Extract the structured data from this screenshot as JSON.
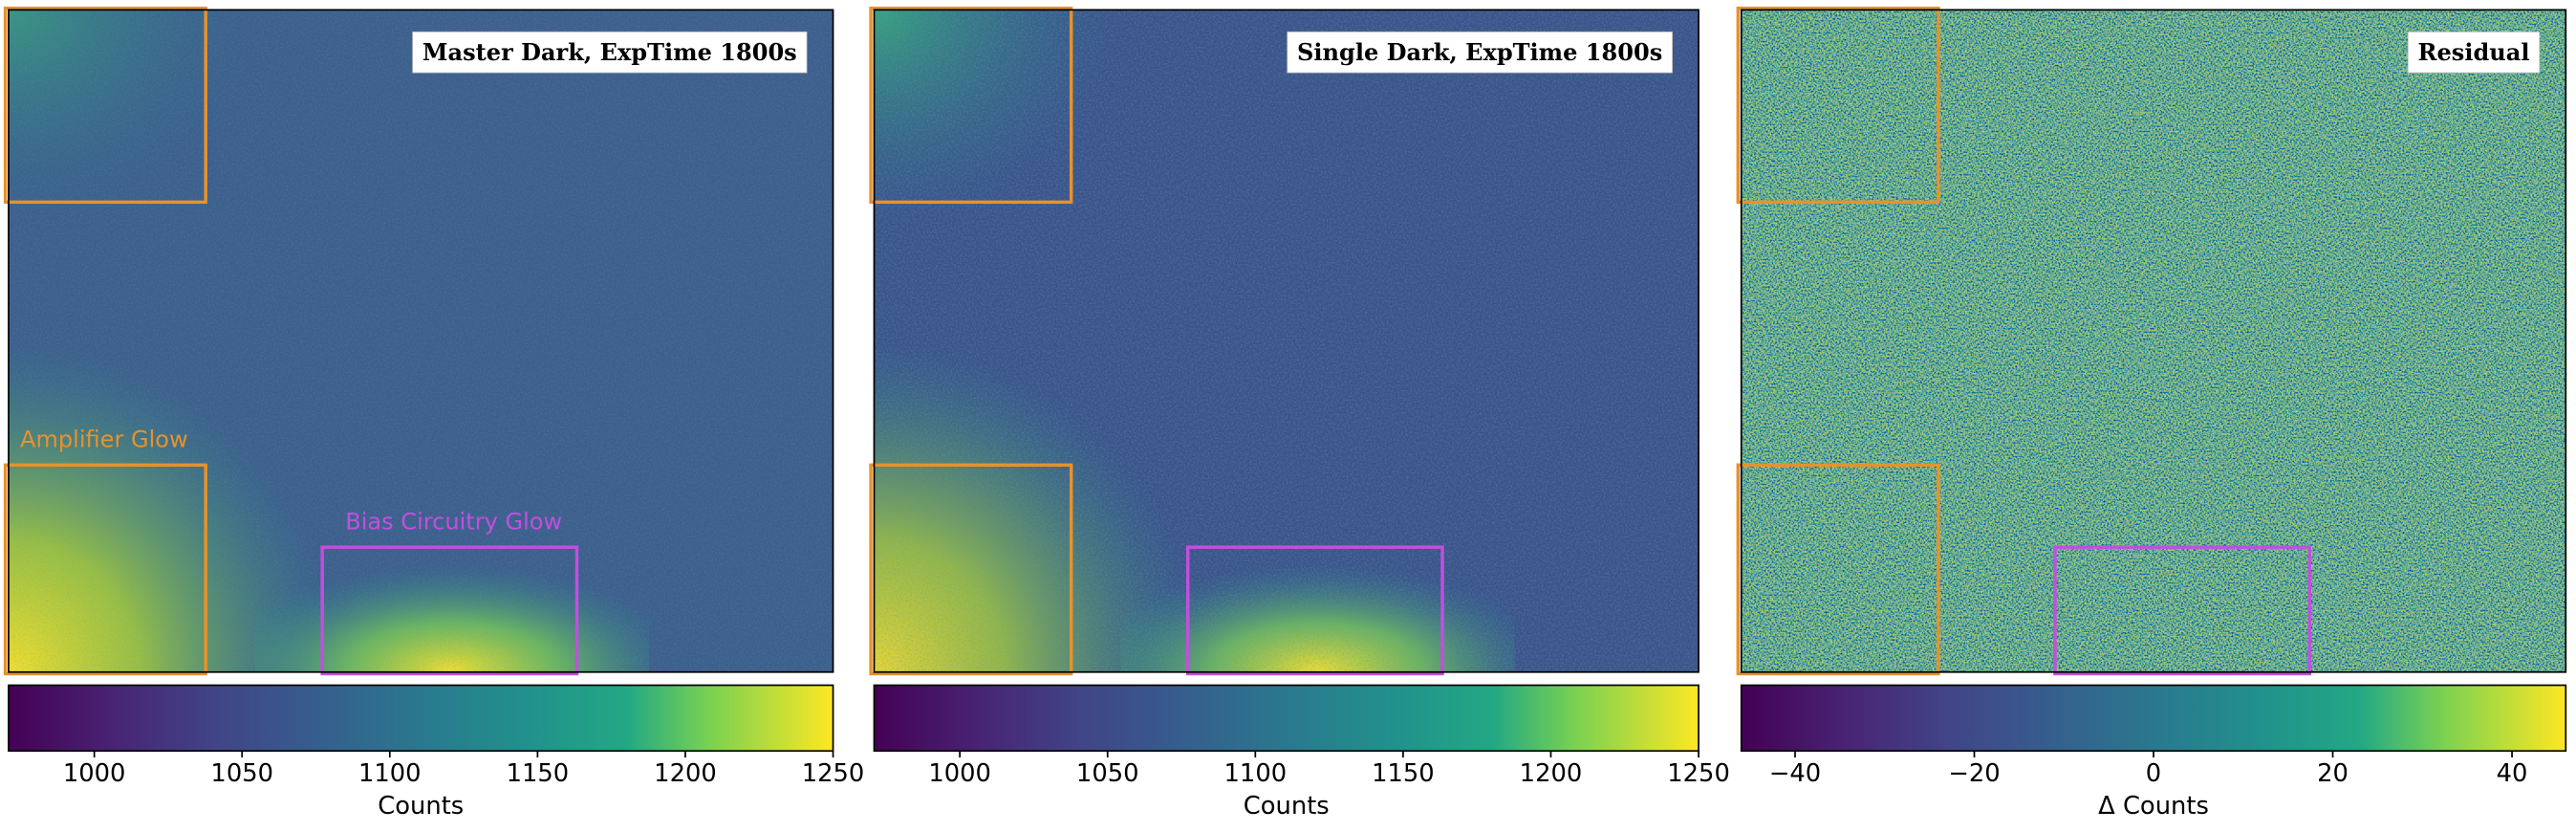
{
  "chart_data": [
    {
      "type": "image",
      "title": "Master Dark, ExpTime 1800s",
      "xlabel": "Counts",
      "colormap": "viridis",
      "xlim": [
        971,
        1250
      ],
      "xticks": [
        1000,
        1050,
        1100,
        1150,
        1200,
        1250
      ],
      "annotations": [
        {
          "text": "Amplifier Glow",
          "color": "#e8922a"
        },
        {
          "text": "Bias Circuitry Glow",
          "color": "#c44ee0"
        }
      ]
    },
    {
      "type": "image",
      "title": "Single Dark, ExpTime 1800s",
      "xlabel": "Counts",
      "colormap": "viridis",
      "xlim": [
        971,
        1250
      ],
      "xticks": [
        1000,
        1050,
        1100,
        1150,
        1200,
        1250
      ]
    },
    {
      "type": "image",
      "title": "Residual",
      "xlabel": "Δ Counts",
      "colormap": "viridis",
      "xlim": [
        -46,
        46
      ],
      "xticks": [
        {
          "value": -40,
          "label": "−40"
        },
        {
          "value": -20,
          "label": "−20"
        },
        0,
        20,
        40
      ]
    }
  ]
}
